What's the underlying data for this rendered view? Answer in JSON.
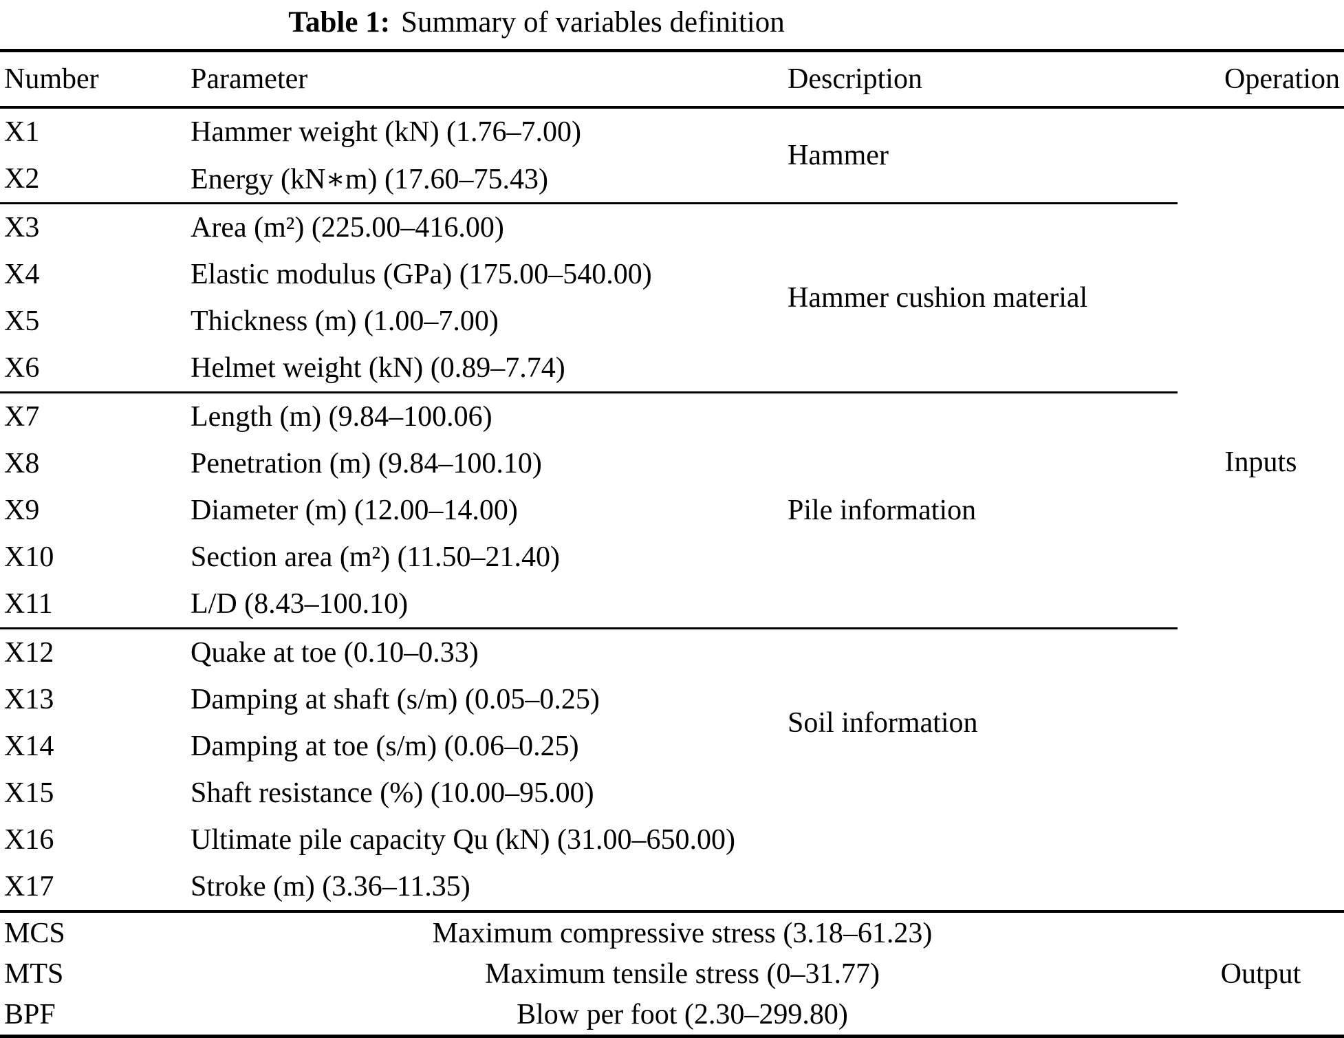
{
  "table": {
    "title_label": "Table 1:",
    "title_text": "Summary of variables definition",
    "columns": [
      "Number",
      "Parameter",
      "Description",
      "Operation"
    ],
    "inputs_label": "Inputs",
    "output_label": "Output",
    "input_groups": [
      {
        "description": "Hammer",
        "rows": [
          {
            "number": "X1",
            "parameter": "Hammer weight (kN) (1.76–7.00)"
          },
          {
            "number": "X2",
            "parameter": "Energy (kN∗m) (17.60–75.43)"
          }
        ]
      },
      {
        "description": "Hammer cushion material",
        "rows": [
          {
            "number": "X3",
            "parameter": "Area (m²) (225.00–416.00)"
          },
          {
            "number": "X4",
            "parameter": "Elastic modulus (GPa) (175.00–540.00)"
          },
          {
            "number": "X5",
            "parameter": "Thickness (m) (1.00–7.00)"
          },
          {
            "number": "X6",
            "parameter": "Helmet weight (kN) (0.89–7.74)"
          }
        ]
      },
      {
        "description": "Pile information",
        "rows": [
          {
            "number": "X7",
            "parameter": "Length (m) (9.84–100.06)"
          },
          {
            "number": "X8",
            "parameter": "Penetration (m) (9.84–100.10)"
          },
          {
            "number": "X9",
            "parameter": "Diameter (m) (12.00–14.00)"
          },
          {
            "number": "X10",
            "parameter": "Section area (m²) (11.50–21.40)"
          },
          {
            "number": "X11",
            "parameter": "L/D (8.43–100.10)"
          }
        ]
      },
      {
        "description": "Soil information",
        "rows": [
          {
            "number": "X12",
            "parameter": "Quake at toe (0.10–0.33)"
          },
          {
            "number": "X13",
            "parameter": "Damping at shaft (s/m) (0.05–0.25)"
          },
          {
            "number": "X14",
            "parameter": "Damping at toe (s/m) (0.06–0.25)"
          },
          {
            "number": "X15",
            "parameter": "Shaft resistance (%) (10.00–95.00)"
          },
          {
            "number": "X16",
            "parameter": "Ultimate pile capacity Qu (kN) (31.00–650.00)"
          },
          {
            "number": "X17",
            "parameter": "Stroke (m) (3.36–11.35)"
          }
        ]
      }
    ],
    "output_rows": [
      {
        "number": "MCS",
        "parameter": "Maximum compressive stress (3.18–61.23)"
      },
      {
        "number": "MTS",
        "parameter": "Maximum tensile stress (0–31.77)"
      },
      {
        "number": "BPF",
        "parameter": "Blow per foot (2.30–299.80)"
      }
    ]
  }
}
